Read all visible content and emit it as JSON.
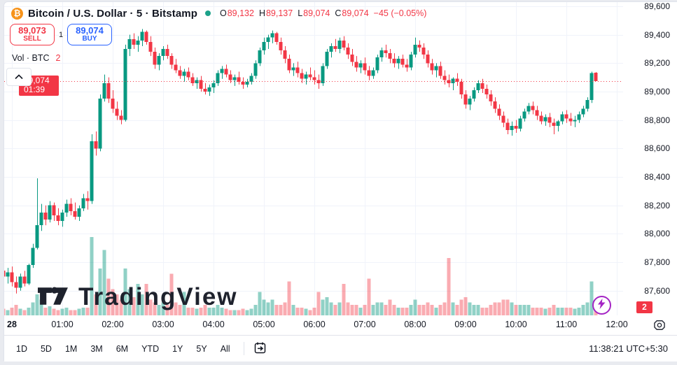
{
  "header": {
    "symbol_title": "Bitcoin / U.S. Dollar · 5 · Bitstamp",
    "ohlc": {
      "o_label": "O",
      "o": "89,132",
      "h_label": "H",
      "h": "89,137",
      "l_label": "L",
      "l": "89,074",
      "c_label": "C",
      "c": "89,074",
      "change": "−45 (−0.05%)"
    }
  },
  "trade_buttons": {
    "sell_price": "89,073",
    "sell_label": "SELL",
    "spread": "1",
    "buy_price": "89,074",
    "buy_label": "BUY"
  },
  "volume_legend": {
    "label": "Vol · BTC",
    "value": "2"
  },
  "price_scale": {
    "labels": [
      89600,
      89400,
      89200,
      89000,
      88800,
      88600,
      88400,
      88200,
      88000,
      87800,
      87600
    ],
    "last_price_badge": {
      "price": "89,074",
      "countdown": "01:39"
    },
    "volume_badge": "2"
  },
  "time_scale": {
    "ticks": [
      {
        "label": "28",
        "hour": 0,
        "bold": true
      },
      {
        "label": "01:00",
        "hour": 1
      },
      {
        "label": "02:00",
        "hour": 2
      },
      {
        "label": "03:00",
        "hour": 3
      },
      {
        "label": "04:00",
        "hour": 4
      },
      {
        "label": "05:00",
        "hour": 5
      },
      {
        "label": "06:00",
        "hour": 6
      },
      {
        "label": "07:00",
        "hour": 7
      },
      {
        "label": "08:00",
        "hour": 8
      },
      {
        "label": "09:00",
        "hour": 9
      },
      {
        "label": "10:00",
        "hour": 10
      },
      {
        "label": "11:00",
        "hour": 11
      },
      {
        "label": "12:00",
        "hour": 12
      }
    ]
  },
  "watermark": {
    "text": "TradingView"
  },
  "toolbar": {
    "ranges": [
      "1D",
      "5D",
      "1M",
      "3M",
      "6M",
      "YTD",
      "1Y",
      "5Y",
      "All"
    ],
    "clock": "11:38:21 UTC+5:30"
  },
  "colors": {
    "up": "#089981",
    "down": "#f23645",
    "vol_up": "rgba(8,153,129,0.45)",
    "vol_down": "rgba(242,54,69,0.42)",
    "grid": "#f0f3fa",
    "accent_blue": "#2962ff",
    "badge_red": "#f23645",
    "bitcoin_orange": "#f7931a",
    "status_dot": "#1ca28a",
    "lightning_purple": "#a424c4"
  },
  "chart_data": {
    "type": "candlestick",
    "symbol": "Bitcoin / U.S. Dollar",
    "exchange": "Bitstamp",
    "interval_minutes": 5,
    "last_price": 89074,
    "session_high": 89440,
    "session_low": 87580,
    "y_axis": {
      "min": 87400,
      "max": 89640,
      "grid_step": 200
    },
    "x_axis": {
      "start": "27 23:50",
      "end": "28 11:40",
      "hour_labels": [
        "28",
        "01:00",
        "02:00",
        "03:00",
        "04:00",
        "05:00",
        "06:00",
        "07:00",
        "08:00",
        "09:00",
        "10:00",
        "11:00",
        "12:00"
      ]
    },
    "volume_unit": "BTC",
    "candles": [
      [
        87740,
        87790,
        87680,
        87700,
        2.5
      ],
      [
        87700,
        87760,
        87650,
        87730,
        2
      ],
      [
        87730,
        87770,
        87630,
        87660,
        3
      ],
      [
        87660,
        87700,
        87580,
        87620,
        4
      ],
      [
        87620,
        87720,
        87600,
        87700,
        2.5
      ],
      [
        87700,
        87740,
        87630,
        87650,
        2
      ],
      [
        87650,
        87790,
        87640,
        87780,
        3
      ],
      [
        87780,
        87930,
        87760,
        87900,
        5
      ],
      [
        87900,
        88390,
        87890,
        88060,
        8
      ],
      [
        88060,
        88210,
        88020,
        88150,
        6
      ],
      [
        88150,
        88200,
        88060,
        88100,
        3
      ],
      [
        88100,
        88230,
        88080,
        88200,
        3.5
      ],
      [
        88200,
        88220,
        88090,
        88130,
        2.5
      ],
      [
        88130,
        88180,
        88060,
        88090,
        2
      ],
      [
        88090,
        88170,
        88050,
        88150,
        2.5
      ],
      [
        88150,
        88240,
        88120,
        88210,
        3
      ],
      [
        88210,
        88250,
        88130,
        88160,
        2
      ],
      [
        88160,
        88220,
        88100,
        88120,
        2
      ],
      [
        88120,
        88200,
        88090,
        88180,
        2.5
      ],
      [
        88180,
        88280,
        88160,
        88250,
        3
      ],
      [
        88250,
        88300,
        88170,
        88230,
        3
      ],
      [
        88230,
        88700,
        88210,
        88650,
        30
      ],
      [
        88650,
        88720,
        88550,
        88600,
        8
      ],
      [
        88600,
        88980,
        88580,
        88950,
        18
      ],
      [
        88950,
        89120,
        88930,
        89060,
        25
      ],
      [
        89060,
        89100,
        88920,
        88950,
        14
      ],
      [
        88950,
        89010,
        88850,
        88880,
        10
      ],
      [
        88880,
        88930,
        88800,
        88830,
        8
      ],
      [
        88830,
        88870,
        88770,
        88800,
        6
      ],
      [
        88800,
        89330,
        88790,
        89300,
        18
      ],
      [
        89300,
        89400,
        89250,
        89370,
        10
      ],
      [
        89370,
        89410,
        89300,
        89330,
        7
      ],
      [
        89330,
        89390,
        89280,
        89360,
        12
      ],
      [
        89360,
        89440,
        89320,
        89420,
        8
      ],
      [
        89420,
        89430,
        89330,
        89350,
        12
      ],
      [
        89350,
        89390,
        89250,
        89280,
        6
      ],
      [
        89280,
        89310,
        89160,
        89190,
        5
      ],
      [
        89190,
        89270,
        89150,
        89250,
        4
      ],
      [
        89250,
        89320,
        89220,
        89300,
        5
      ],
      [
        89300,
        89330,
        89230,
        89250,
        4
      ],
      [
        89250,
        89270,
        89160,
        89190,
        16
      ],
      [
        89190,
        89230,
        89130,
        89150,
        5
      ],
      [
        89150,
        89180,
        89090,
        89110,
        4
      ],
      [
        89110,
        89160,
        89070,
        89140,
        9
      ],
      [
        89140,
        89170,
        89080,
        89100,
        3
      ],
      [
        89100,
        89130,
        89040,
        89060,
        3
      ],
      [
        89060,
        89100,
        89020,
        89080,
        2.5
      ],
      [
        89080,
        89110,
        89000,
        89020,
        3
      ],
      [
        89020,
        89060,
        88980,
        89000,
        4
      ],
      [
        89000,
        89050,
        88970,
        89030,
        3
      ],
      [
        89030,
        89080,
        88990,
        89060,
        3
      ],
      [
        89060,
        89150,
        89040,
        89130,
        4
      ],
      [
        89130,
        89180,
        89090,
        89160,
        3
      ],
      [
        89160,
        89190,
        89100,
        89120,
        2.5
      ],
      [
        89120,
        89150,
        89060,
        89080,
        2
      ],
      [
        89080,
        89120,
        89040,
        89100,
        2
      ],
      [
        89100,
        89140,
        89050,
        89070,
        2
      ],
      [
        89070,
        89100,
        89020,
        89050,
        2.5
      ],
      [
        89050,
        89090,
        89030,
        89070,
        2
      ],
      [
        89070,
        89130,
        89050,
        89110,
        2.5
      ],
      [
        89110,
        89220,
        89090,
        89200,
        4
      ],
      [
        89200,
        89310,
        89180,
        89290,
        9
      ],
      [
        89290,
        89380,
        89260,
        89350,
        6
      ],
      [
        89350,
        89400,
        89300,
        89380,
        5
      ],
      [
        89380,
        89430,
        89340,
        89410,
        6
      ],
      [
        89410,
        89420,
        89330,
        89350,
        4
      ],
      [
        89350,
        89380,
        89260,
        89290,
        4
      ],
      [
        89290,
        89320,
        89200,
        89230,
        5
      ],
      [
        89230,
        89260,
        89130,
        89150,
        13
      ],
      [
        89150,
        89200,
        89110,
        89170,
        4
      ],
      [
        89170,
        89210,
        89100,
        89130,
        3
      ],
      [
        89130,
        89160,
        89060,
        89090,
        3
      ],
      [
        89090,
        89140,
        89050,
        89120,
        2.5
      ],
      [
        89120,
        89170,
        89080,
        89100,
        2
      ],
      [
        89100,
        89150,
        89050,
        89080,
        3
      ],
      [
        89080,
        89120,
        89020,
        89060,
        9
      ],
      [
        89060,
        89200,
        89040,
        89180,
        6
      ],
      [
        89180,
        89300,
        89160,
        89280,
        7
      ],
      [
        89280,
        89340,
        89240,
        89320,
        5
      ],
      [
        89320,
        89370,
        89280,
        89300,
        4
      ],
      [
        89300,
        89380,
        89270,
        89360,
        5
      ],
      [
        89360,
        89390,
        89290,
        89310,
        12
      ],
      [
        89310,
        89340,
        89230,
        89260,
        5
      ],
      [
        89260,
        89300,
        89180,
        89210,
        4
      ],
      [
        89210,
        89250,
        89140,
        89170,
        4
      ],
      [
        89170,
        89220,
        89130,
        89200,
        3
      ],
      [
        89200,
        89240,
        89120,
        89150,
        4
      ],
      [
        89150,
        89180,
        89080,
        89110,
        14
      ],
      [
        89110,
        89170,
        89090,
        89150,
        4
      ],
      [
        89150,
        89260,
        89130,
        89240,
        5
      ],
      [
        89240,
        89310,
        89210,
        89290,
        5
      ],
      [
        89290,
        89330,
        89240,
        89270,
        4
      ],
      [
        89270,
        89300,
        89200,
        89230,
        6
      ],
      [
        89230,
        89270,
        89170,
        89200,
        4
      ],
      [
        89200,
        89250,
        89160,
        89230,
        3
      ],
      [
        89230,
        89260,
        89170,
        89190,
        3
      ],
      [
        89190,
        89230,
        89140,
        89170,
        3
      ],
      [
        89170,
        89280,
        89150,
        89260,
        4
      ],
      [
        89260,
        89380,
        89240,
        89330,
        6
      ],
      [
        89330,
        89360,
        89280,
        89310,
        4
      ],
      [
        89310,
        89340,
        89230,
        89260,
        4
      ],
      [
        89260,
        89290,
        89170,
        89200,
        5
      ],
      [
        89200,
        89230,
        89120,
        89150,
        4
      ],
      [
        89150,
        89200,
        89100,
        89180,
        3
      ],
      [
        89180,
        89210,
        89090,
        89110,
        4
      ],
      [
        89110,
        89150,
        89050,
        89080,
        5
      ],
      [
        89080,
        89120,
        89030,
        89060,
        22
      ],
      [
        89060,
        89100,
        89010,
        89090,
        5
      ],
      [
        89090,
        89130,
        89040,
        89070,
        4
      ],
      [
        89070,
        89090,
        88950,
        88980,
        6
      ],
      [
        88980,
        89010,
        88880,
        88910,
        7
      ],
      [
        88910,
        88970,
        88870,
        88950,
        5
      ],
      [
        88950,
        89030,
        88930,
        89010,
        4
      ],
      [
        89010,
        89080,
        88990,
        89060,
        4
      ],
      [
        89060,
        89090,
        88990,
        89020,
        3
      ],
      [
        89020,
        89050,
        88950,
        88980,
        3
      ],
      [
        88980,
        89010,
        88900,
        88930,
        4
      ],
      [
        88930,
        88960,
        88850,
        88880,
        5
      ],
      [
        88880,
        88910,
        88800,
        88830,
        5
      ],
      [
        88830,
        88860,
        88750,
        88780,
        6
      ],
      [
        88780,
        88810,
        88700,
        88730,
        6
      ],
      [
        88730,
        88790,
        88690,
        88760,
        5
      ],
      [
        88760,
        88800,
        88710,
        88740,
        4
      ],
      [
        88740,
        88830,
        88720,
        88810,
        4
      ],
      [
        88810,
        88880,
        88790,
        88860,
        4
      ],
      [
        88860,
        88920,
        88840,
        88900,
        4
      ],
      [
        88900,
        88930,
        88840,
        88870,
        3
      ],
      [
        88870,
        88900,
        88800,
        88830,
        3
      ],
      [
        88830,
        88860,
        88770,
        88790,
        3
      ],
      [
        88790,
        88840,
        88760,
        88820,
        2.5
      ],
      [
        88820,
        88850,
        88750,
        88780,
        3
      ],
      [
        88780,
        88810,
        88700,
        88760,
        4
      ],
      [
        88760,
        88800,
        88720,
        88790,
        3
      ],
      [
        88790,
        88860,
        88770,
        88840,
        3
      ],
      [
        88840,
        88870,
        88780,
        88810,
        3
      ],
      [
        88810,
        88850,
        88760,
        88790,
        3
      ],
      [
        88790,
        88830,
        88750,
        88800,
        2.5
      ],
      [
        88800,
        88860,
        88780,
        88840,
        3
      ],
      [
        88840,
        88900,
        88820,
        88880,
        4
      ],
      [
        88880,
        88960,
        88860,
        88940,
        5
      ],
      [
        88940,
        89140,
        88920,
        89130,
        13
      ],
      [
        89132,
        89137,
        89074,
        89074,
        2
      ]
    ]
  }
}
